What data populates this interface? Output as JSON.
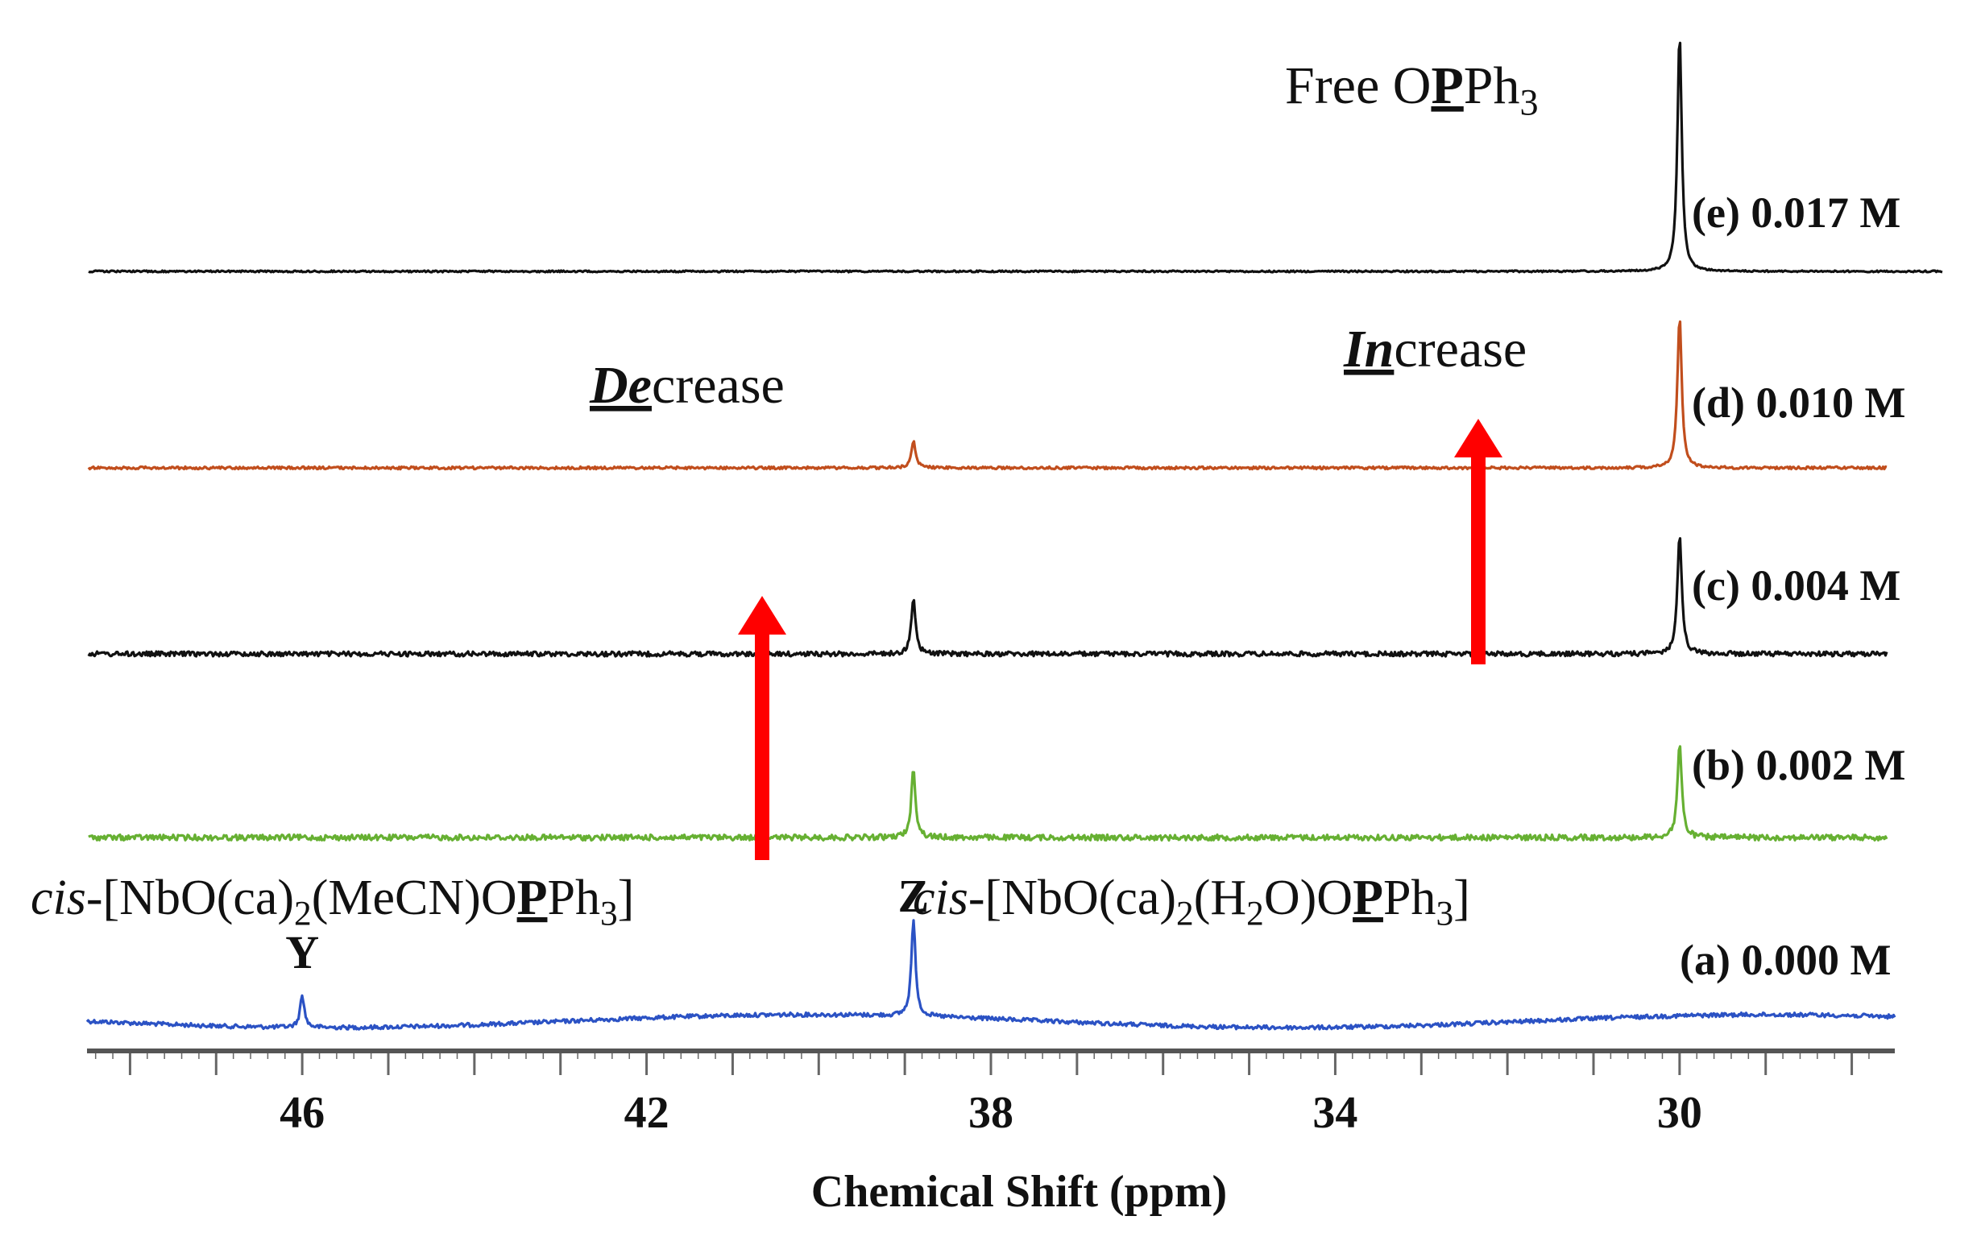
{
  "chart_data": {
    "type": "line",
    "title": "",
    "xlabel": "Chemical Shift (ppm)",
    "ylabel": "",
    "xlim": [
      48.5,
      27.5
    ],
    "x_ticks": [
      46,
      42,
      38,
      34,
      30
    ],
    "grid": false,
    "legend": "right",
    "series": [
      {
        "id": "a",
        "label": "(a) 0.000 M",
        "color": "#2b52c4",
        "peaks": [
          {
            "x": 46.0,
            "height": 0.34
          },
          {
            "x": 38.9,
            "height": 1.0
          }
        ]
      },
      {
        "id": "b",
        "label": "(b) 0.002 M",
        "color": "#66b032",
        "peaks": [
          {
            "x": 38.9,
            "height": 0.72
          },
          {
            "x": 30.0,
            "height": 1.0
          }
        ]
      },
      {
        "id": "c",
        "label": "(c) 0.004 M",
        "color": "#111111",
        "peaks": [
          {
            "x": 38.9,
            "height": 0.47
          },
          {
            "x": 30.0,
            "height": 1.0
          }
        ]
      },
      {
        "id": "d",
        "label": "(d) 0.010 M",
        "color": "#c14e1d",
        "peaks": [
          {
            "x": 38.9,
            "height": 0.18
          },
          {
            "x": 30.0,
            "height": 1.0
          }
        ]
      },
      {
        "id": "e",
        "label": "(e) 0.017 M",
        "color": "#111111",
        "peaks": [
          {
            "x": 30.0,
            "height": 1.0
          }
        ]
      }
    ],
    "annotations": {
      "free_prefix": "Free O",
      "free_p": "P",
      "free_ph": "Ph",
      "free_sub3": "3",
      "decrease_prefix": "De",
      "decrease_suffix": "crease",
      "increase_prefix": "In",
      "increase_suffix": "crease",
      "cis_italic": "cis",
      "cis_left_1": "-[NbO(ca)",
      "cis_left_sub2": "2",
      "cis_left_2": "(MeCN)O",
      "cis_left_p": "P",
      "cis_left_ph": "Ph",
      "cis_left_sub3": "3",
      "cis_left_close": "]",
      "cis_right_1": "-[NbO(ca)",
      "cis_right_sub2": "2",
      "cis_right_2": "(H",
      "cis_right_subh2": "2",
      "cis_right_3": "O)O",
      "cis_right_p": "P",
      "cis_right_ph": "Ph",
      "cis_right_sub3": "3",
      "cis_right_close": "]",
      "Y": "Y",
      "Z": "Z"
    },
    "arrow_color": "#ff0000"
  }
}
